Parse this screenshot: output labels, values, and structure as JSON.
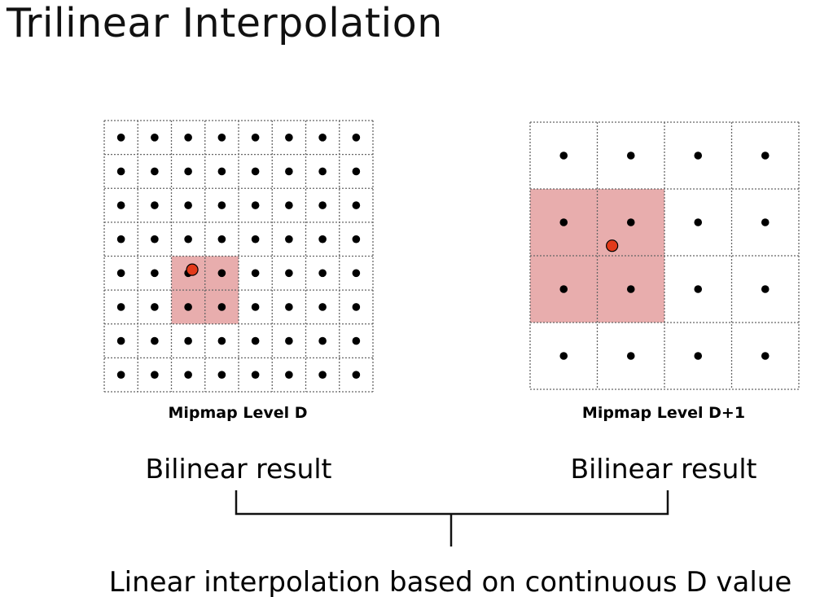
{
  "title": "Trilinear Interpolation",
  "level_d": {
    "caption": "Mipmap Level D",
    "cells": 8,
    "highlight": {
      "col_start": 2,
      "row_start": 4,
      "size": 2
    },
    "sample_point": {
      "col": 2.62,
      "row": 4.4
    }
  },
  "level_d1": {
    "caption": "Mipmap Level D+1",
    "cells": 4,
    "highlight": {
      "col_start": 0,
      "row_start": 1,
      "size": 2
    },
    "sample_point": {
      "col": 1.22,
      "row": 1.85
    }
  },
  "left_result": "Bilinear result",
  "right_result": "Bilinear result",
  "bottom_label": "Linear interpolation based on continuous D value",
  "colors": {
    "highlight_fill": "#e8adad",
    "sample_point": "#e23a1a",
    "texel_dot": "#000000",
    "grid_line": "#666666"
  }
}
